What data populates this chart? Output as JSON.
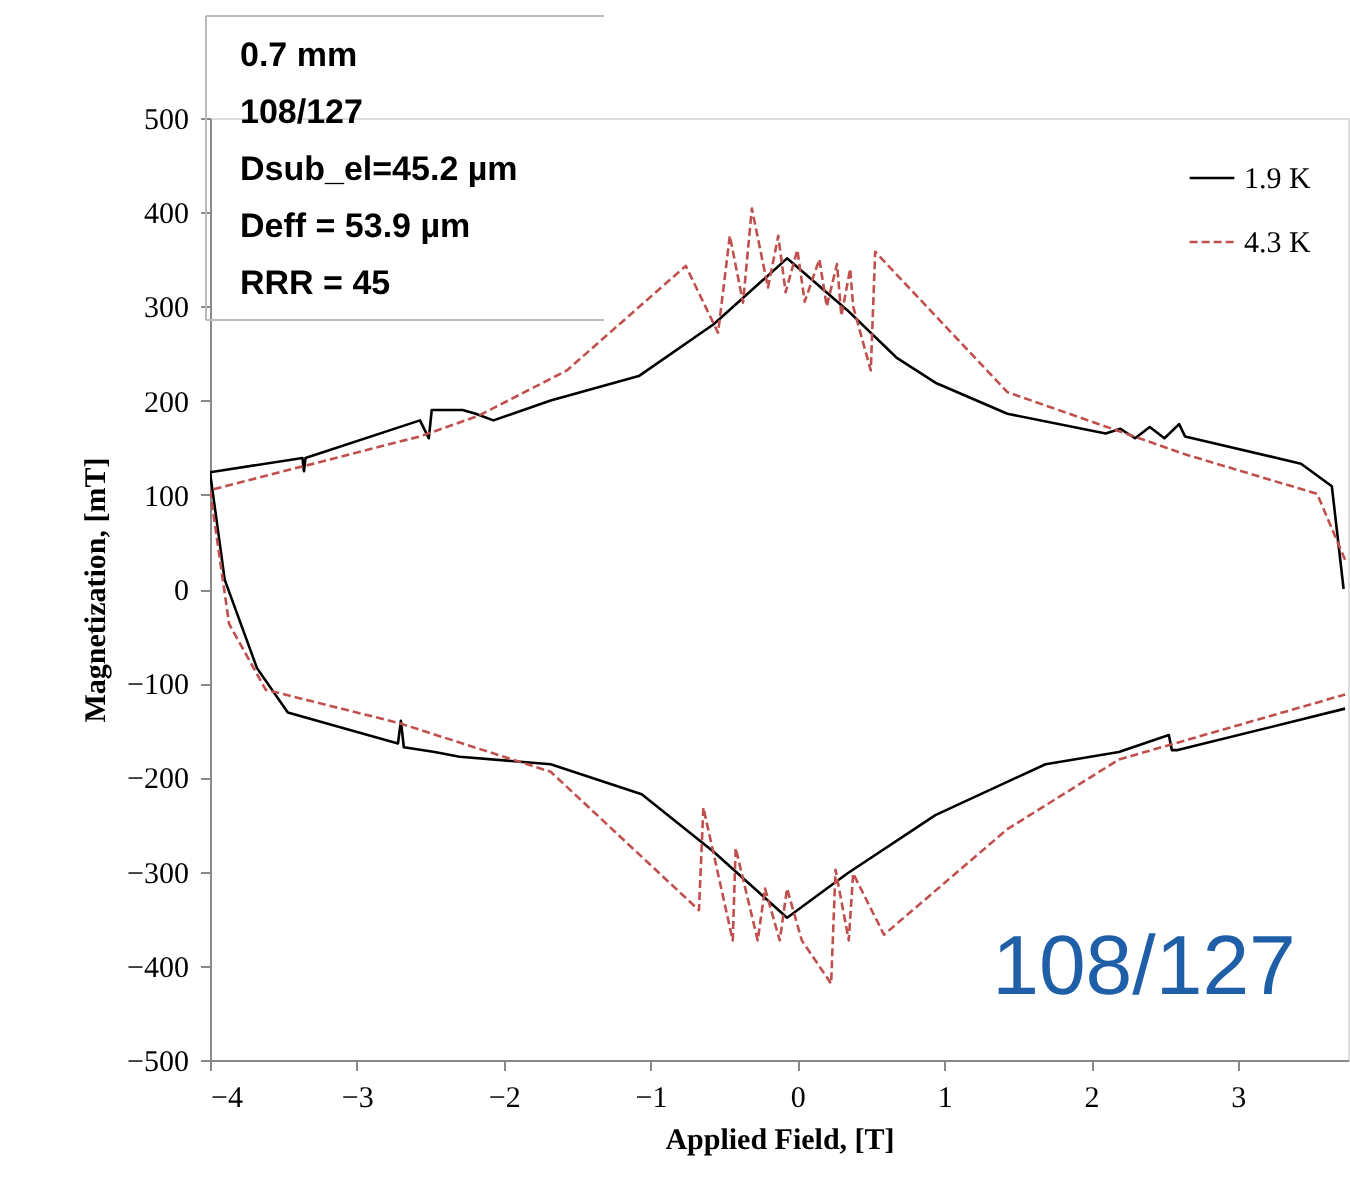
{
  "chart_data": {
    "type": "line",
    "xlabel": "Applied Field, [T]",
    "ylabel": "Magnetization, [mT]",
    "xlim": [
      -4,
      3.75
    ],
    "xticks": [
      -4,
      -3,
      -2,
      -1,
      0,
      1,
      2,
      3
    ],
    "ylim": [
      -500,
      500
    ],
    "yticks": [
      -500,
      -400,
      -300,
      -200,
      -100,
      0,
      100,
      200,
      300,
      400,
      500
    ],
    "grid": false,
    "legend": "top right",
    "annotations": [
      "0.7 mm",
      "108/127",
      "Dsub_el=45.2 µm",
      "Deff = 53.9 µm",
      "RRR = 45",
      "108/127"
    ],
    "series": [
      {
        "name": "1.9 K",
        "color": "#000000",
        "line_style": "solid",
        "x": [
          3.72,
          3.64,
          3.43,
          2.64,
          2.6,
          2.5,
          2.4,
          2.3,
          2.2,
          2.1,
          1.43,
          0.94,
          0.68,
          0.34,
          -0.07,
          -0.57,
          -1.08,
          -1.68,
          -2.07,
          -2.19,
          -2.28,
          -2.49,
          -2.51,
          -2.57,
          -3.35,
          -3.36,
          -3.37,
          -4.0,
          -3.9,
          -3.68,
          -3.47,
          -2.72,
          -2.7,
          -2.68,
          -2.47,
          -2.3,
          -1.68,
          -1.06,
          -0.57,
          -0.07,
          0.34,
          0.94,
          1.69,
          2.19,
          2.53,
          2.55,
          2.59,
          3.73
        ],
        "values": [
          0,
          109,
          133,
          162,
          175,
          160,
          172,
          160,
          170,
          165,
          186,
          219,
          245,
          296,
          351,
          281,
          226,
          200,
          179,
          186,
          190,
          190,
          160,
          179,
          139,
          125,
          139,
          124,
          10,
          -84,
          -131,
          -164,
          -140,
          -168,
          -173,
          -178,
          -186,
          -218,
          -279,
          -349,
          -302,
          -240,
          -186,
          -173,
          -155,
          -171,
          -171,
          -127
        ]
      },
      {
        "name": "4.3 K",
        "color": "#c0504d",
        "line_style": "dashed",
        "x": [
          3.73,
          3.54,
          2.64,
          1.43,
          0.53,
          0.5,
          0.38,
          0.36,
          0.3,
          0.27,
          0.2,
          0.15,
          0.05,
          0.0,
          -0.08,
          -0.13,
          -0.2,
          -0.31,
          -0.37,
          -0.46,
          -0.54,
          -0.76,
          -1.57,
          -2.17,
          -2.57,
          -4.0,
          -3.87,
          -3.62,
          -2.72,
          -1.68,
          -0.67,
          -0.64,
          -0.44,
          -0.42,
          -0.27,
          -0.22,
          -0.12,
          -0.07,
          0.03,
          0.23,
          0.26,
          0.35,
          0.38,
          0.59,
          1.43,
          2.19,
          3.73
        ],
        "values": [
          31,
          101,
          143,
          209,
          358,
          232,
          300,
          340,
          290,
          345,
          300,
          350,
          305,
          360,
          315,
          375,
          320,
          404,
          304,
          375,
          272,
          343,
          232,
          184,
          162,
          105,
          -37,
          -107,
          -142,
          -194,
          -341,
          -232,
          -373,
          -275,
          -373,
          -318,
          -373,
          -318,
          -373,
          -419,
          -298,
          -373,
          -302,
          -367,
          -255,
          -181,
          -112
        ]
      }
    ]
  }
}
